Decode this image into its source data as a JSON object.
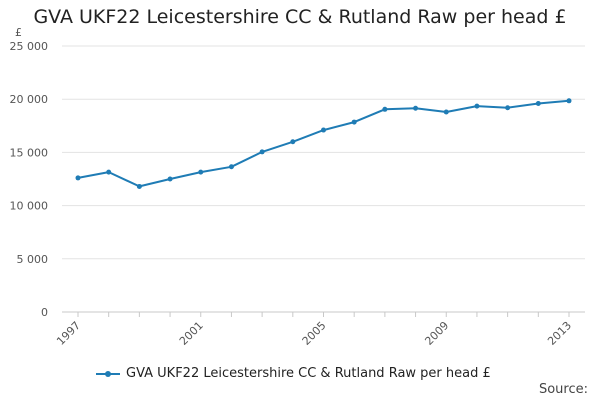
{
  "chart_data": {
    "type": "line",
    "title": "GVA UKF22 Leicestershire CC & Rutland Raw per head £",
    "unit_label": "£",
    "x": [
      1997,
      1998,
      1999,
      2000,
      2001,
      2002,
      2003,
      2004,
      2005,
      2006,
      2007,
      2008,
      2009,
      2010,
      2011,
      2012,
      2013
    ],
    "x_tick_labels": [
      "1997",
      "2001",
      "2005",
      "2009",
      "2013"
    ],
    "x_tick_values": [
      1997,
      2001,
      2005,
      2009,
      2013
    ],
    "ylim": [
      0,
      25000
    ],
    "y_tick_labels": [
      "0",
      "5 000",
      "10 000",
      "15 000",
      "20 000",
      "25 000"
    ],
    "y_tick_values": [
      0,
      5000,
      10000,
      15000,
      20000,
      25000
    ],
    "series": [
      {
        "name": "GVA UKF22 Leicestershire CC & Rutland Raw per head £",
        "color": "#1f7cb5",
        "values": [
          12600,
          13150,
          11800,
          12500,
          13150,
          13650,
          15050,
          16000,
          17100,
          17850,
          19050,
          19150,
          18800,
          19350,
          19200,
          19600,
          19850
        ]
      }
    ],
    "grid": true,
    "legend_position": "bottom"
  },
  "footer": {
    "source_label": "Source:"
  }
}
